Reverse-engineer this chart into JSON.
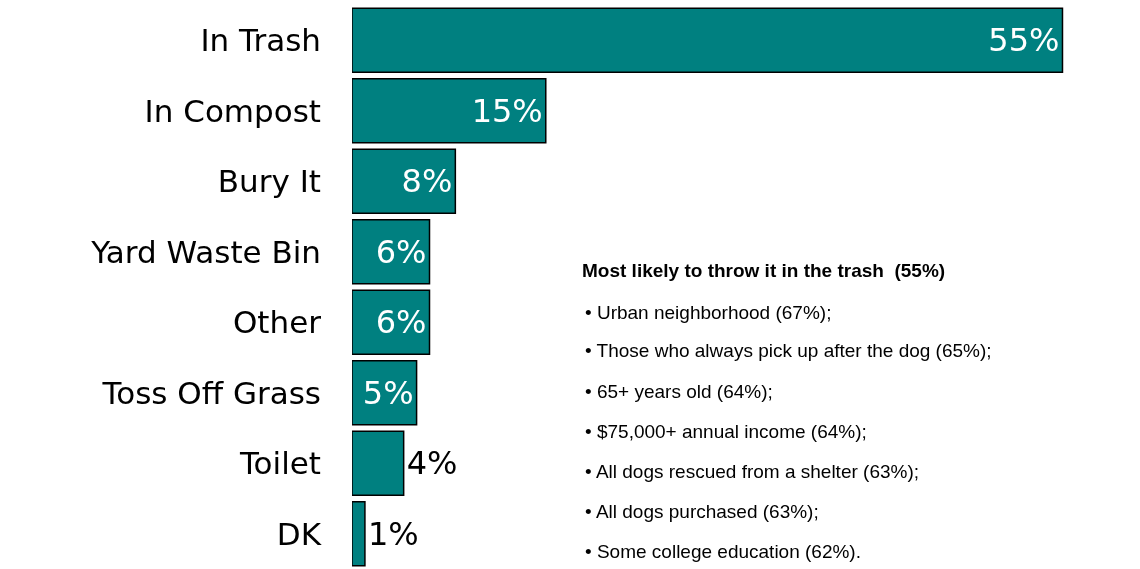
{
  "chart_data": {
    "type": "bar",
    "orientation": "horizontal",
    "categories": [
      "In Trash",
      "In Compost",
      "Bury It",
      "Yard Waste Bin",
      "Other",
      "Toss Off Grass",
      "Toilet",
      "DK"
    ],
    "values": [
      55,
      15,
      8,
      6,
      6,
      5,
      4,
      1
    ],
    "value_labels": [
      "55%",
      "15%",
      "8%",
      "6%",
      "6%",
      "5%",
      "4%",
      "1%"
    ],
    "color": "#008080",
    "xlim": [
      0,
      61
    ],
    "tick_labels": "y",
    "legend": false,
    "annotations": [
      "Most likely to throw it in the trash  (55%)",
      "• Urban neighborhood (67%);",
      "• Those who always pick up after the dog (65%);",
      "• 65+ years old (64%);",
      "• $75,000+ annual income (64%);",
      "• All dogs rescued from a shelter (63%);",
      "• All dogs purchased (63%);",
      "• Some college education (62%)."
    ]
  }
}
